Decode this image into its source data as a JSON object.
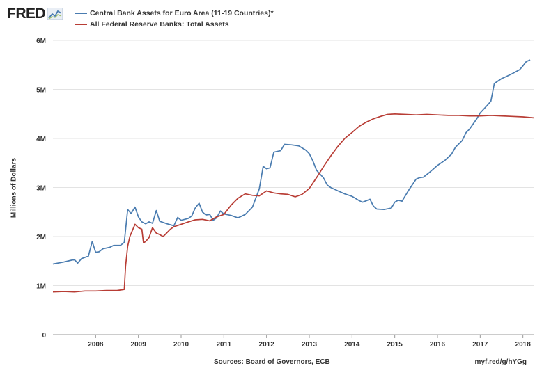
{
  "header": {
    "logo_text": "FRED",
    "logo_icon": "fred-chart-icon"
  },
  "colors": {
    "euro": "#4a7cb0",
    "fed": "#b83d35",
    "grid": "#e3e3e3",
    "axis": "#999999"
  },
  "footer": {
    "sources": "Sources: Board of Governors, ECB",
    "link": "myf.red/g/hYGg"
  },
  "chart_data": {
    "type": "line",
    "title": "",
    "xlabel": "",
    "ylabel": "Millions of Dollars",
    "xlim": [
      2007.0,
      2018.25
    ],
    "ylim": [
      0,
      6000000
    ],
    "grid": "horizontal",
    "legend_placement": "top-left",
    "y_ticks": [
      {
        "value": 0,
        "label": "0"
      },
      {
        "value": 1000000,
        "label": "1M"
      },
      {
        "value": 2000000,
        "label": "2M"
      },
      {
        "value": 3000000,
        "label": "3M"
      },
      {
        "value": 4000000,
        "label": "4M"
      },
      {
        "value": 5000000,
        "label": "5M"
      },
      {
        "value": 6000000,
        "label": "6M"
      }
    ],
    "x_ticks": [
      {
        "value": 2008,
        "label": "2008"
      },
      {
        "value": 2009,
        "label": "2009"
      },
      {
        "value": 2010,
        "label": "2010"
      },
      {
        "value": 2011,
        "label": "2011"
      },
      {
        "value": 2012,
        "label": "2012"
      },
      {
        "value": 2013,
        "label": "2013"
      },
      {
        "value": 2014,
        "label": "2014"
      },
      {
        "value": 2015,
        "label": "2015"
      },
      {
        "value": 2016,
        "label": "2016"
      },
      {
        "value": 2017,
        "label": "2017"
      },
      {
        "value": 2018,
        "label": "2018"
      }
    ],
    "series": [
      {
        "name": "Central Bank Assets for Euro Area (11-19 Countries)*",
        "color": "#4a7cb0",
        "points": [
          [
            2007.0,
            1440000
          ],
          [
            2007.25,
            1480000
          ],
          [
            2007.4,
            1510000
          ],
          [
            2007.5,
            1530000
          ],
          [
            2007.58,
            1460000
          ],
          [
            2007.67,
            1550000
          ],
          [
            2007.83,
            1600000
          ],
          [
            2007.92,
            1900000
          ],
          [
            2008.0,
            1680000
          ],
          [
            2008.08,
            1690000
          ],
          [
            2008.17,
            1750000
          ],
          [
            2008.33,
            1780000
          ],
          [
            2008.42,
            1820000
          ],
          [
            2008.58,
            1820000
          ],
          [
            2008.67,
            1880000
          ],
          [
            2008.75,
            2550000
          ],
          [
            2008.83,
            2470000
          ],
          [
            2008.92,
            2600000
          ],
          [
            2009.0,
            2400000
          ],
          [
            2009.08,
            2300000
          ],
          [
            2009.17,
            2260000
          ],
          [
            2009.25,
            2300000
          ],
          [
            2009.33,
            2270000
          ],
          [
            2009.42,
            2530000
          ],
          [
            2009.5,
            2310000
          ],
          [
            2009.67,
            2260000
          ],
          [
            2009.83,
            2220000
          ],
          [
            2009.92,
            2390000
          ],
          [
            2010.0,
            2330000
          ],
          [
            2010.17,
            2370000
          ],
          [
            2010.25,
            2420000
          ],
          [
            2010.33,
            2580000
          ],
          [
            2010.42,
            2680000
          ],
          [
            2010.5,
            2500000
          ],
          [
            2010.58,
            2440000
          ],
          [
            2010.67,
            2450000
          ],
          [
            2010.75,
            2330000
          ],
          [
            2010.83,
            2380000
          ],
          [
            2010.92,
            2520000
          ],
          [
            2011.0,
            2460000
          ],
          [
            2011.17,
            2430000
          ],
          [
            2011.33,
            2380000
          ],
          [
            2011.5,
            2450000
          ],
          [
            2011.67,
            2600000
          ],
          [
            2011.83,
            2970000
          ],
          [
            2011.92,
            3430000
          ],
          [
            2012.0,
            3380000
          ],
          [
            2012.08,
            3400000
          ],
          [
            2012.17,
            3720000
          ],
          [
            2012.33,
            3750000
          ],
          [
            2012.42,
            3880000
          ],
          [
            2012.58,
            3870000
          ],
          [
            2012.75,
            3850000
          ],
          [
            2012.92,
            3760000
          ],
          [
            2013.0,
            3690000
          ],
          [
            2013.08,
            3550000
          ],
          [
            2013.17,
            3350000
          ],
          [
            2013.33,
            3200000
          ],
          [
            2013.42,
            3050000
          ],
          [
            2013.5,
            3000000
          ],
          [
            2013.67,
            2930000
          ],
          [
            2013.83,
            2870000
          ],
          [
            2014.0,
            2820000
          ],
          [
            2014.17,
            2730000
          ],
          [
            2014.25,
            2700000
          ],
          [
            2014.42,
            2760000
          ],
          [
            2014.5,
            2620000
          ],
          [
            2014.58,
            2560000
          ],
          [
            2014.75,
            2550000
          ],
          [
            2014.92,
            2580000
          ],
          [
            2015.0,
            2700000
          ],
          [
            2015.08,
            2740000
          ],
          [
            2015.17,
            2720000
          ],
          [
            2015.33,
            2950000
          ],
          [
            2015.5,
            3170000
          ],
          [
            2015.58,
            3200000
          ],
          [
            2015.67,
            3210000
          ],
          [
            2015.83,
            3320000
          ],
          [
            2016.0,
            3450000
          ],
          [
            2016.17,
            3550000
          ],
          [
            2016.33,
            3680000
          ],
          [
            2016.42,
            3820000
          ],
          [
            2016.58,
            3960000
          ],
          [
            2016.67,
            4120000
          ],
          [
            2016.75,
            4190000
          ],
          [
            2016.92,
            4400000
          ],
          [
            2017.0,
            4520000
          ],
          [
            2017.17,
            4680000
          ],
          [
            2017.25,
            4760000
          ],
          [
            2017.33,
            5120000
          ],
          [
            2017.5,
            5220000
          ],
          [
            2017.58,
            5250000
          ],
          [
            2017.75,
            5320000
          ],
          [
            2017.92,
            5400000
          ],
          [
            2018.0,
            5480000
          ],
          [
            2018.08,
            5570000
          ],
          [
            2018.17,
            5600000
          ]
        ]
      },
      {
        "name": "All Federal Reserve Banks: Total Assets",
        "color": "#b83d35",
        "points": [
          [
            2007.0,
            870000
          ],
          [
            2007.25,
            880000
          ],
          [
            2007.5,
            870000
          ],
          [
            2007.75,
            890000
          ],
          [
            2008.0,
            890000
          ],
          [
            2008.25,
            900000
          ],
          [
            2008.5,
            900000
          ],
          [
            2008.67,
            920000
          ],
          [
            2008.7,
            1400000
          ],
          [
            2008.75,
            1800000
          ],
          [
            2008.8,
            2000000
          ],
          [
            2008.92,
            2250000
          ],
          [
            2009.0,
            2180000
          ],
          [
            2009.08,
            2150000
          ],
          [
            2009.12,
            1870000
          ],
          [
            2009.17,
            1900000
          ],
          [
            2009.25,
            1980000
          ],
          [
            2009.33,
            2180000
          ],
          [
            2009.42,
            2070000
          ],
          [
            2009.5,
            2040000
          ],
          [
            2009.58,
            2000000
          ],
          [
            2009.67,
            2080000
          ],
          [
            2009.75,
            2150000
          ],
          [
            2009.83,
            2200000
          ],
          [
            2010.0,
            2250000
          ],
          [
            2010.17,
            2300000
          ],
          [
            2010.33,
            2340000
          ],
          [
            2010.5,
            2350000
          ],
          [
            2010.67,
            2320000
          ],
          [
            2010.83,
            2400000
          ],
          [
            2011.0,
            2450000
          ],
          [
            2011.17,
            2640000
          ],
          [
            2011.33,
            2780000
          ],
          [
            2011.5,
            2870000
          ],
          [
            2011.67,
            2840000
          ],
          [
            2011.83,
            2830000
          ],
          [
            2012.0,
            2930000
          ],
          [
            2012.17,
            2890000
          ],
          [
            2012.33,
            2870000
          ],
          [
            2012.5,
            2860000
          ],
          [
            2012.67,
            2810000
          ],
          [
            2012.83,
            2860000
          ],
          [
            2013.0,
            2980000
          ],
          [
            2013.17,
            3200000
          ],
          [
            2013.33,
            3420000
          ],
          [
            2013.5,
            3640000
          ],
          [
            2013.67,
            3840000
          ],
          [
            2013.83,
            4000000
          ],
          [
            2014.0,
            4120000
          ],
          [
            2014.17,
            4250000
          ],
          [
            2014.33,
            4330000
          ],
          [
            2014.5,
            4400000
          ],
          [
            2014.67,
            4450000
          ],
          [
            2014.83,
            4490000
          ],
          [
            2015.0,
            4500000
          ],
          [
            2015.25,
            4490000
          ],
          [
            2015.5,
            4480000
          ],
          [
            2015.75,
            4490000
          ],
          [
            2016.0,
            4480000
          ],
          [
            2016.25,
            4470000
          ],
          [
            2016.5,
            4470000
          ],
          [
            2016.75,
            4460000
          ],
          [
            2017.0,
            4460000
          ],
          [
            2017.25,
            4470000
          ],
          [
            2017.5,
            4460000
          ],
          [
            2017.75,
            4450000
          ],
          [
            2018.0,
            4440000
          ],
          [
            2018.25,
            4420000
          ]
        ]
      }
    ]
  }
}
